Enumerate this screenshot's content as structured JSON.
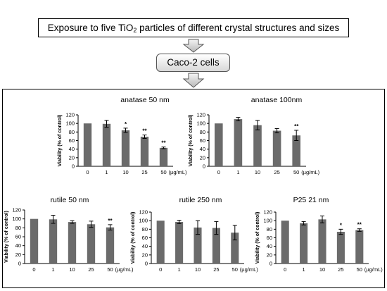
{
  "header": {
    "text_pre": "Exposure to five TiO",
    "subscript": "2",
    "text_post": " particles of different crystal structures and sizes"
  },
  "cell_box": {
    "label": "Caco-2 cells"
  },
  "colors": {
    "bar": "#6b6b6b",
    "axis": "#000000",
    "border": "#000000"
  },
  "chart_data": [
    {
      "type": "bar",
      "title": "anatase 50 nm",
      "ylabel": "Viability (% of control)",
      "categories": [
        "0",
        "1",
        "10",
        "25",
        "50"
      ],
      "unit": "(µg/mL)",
      "values": [
        100,
        99,
        84,
        69,
        43
      ],
      "errors": [
        0,
        8,
        5,
        4,
        2
      ],
      "significance": [
        "",
        "",
        "*",
        "**",
        "**"
      ],
      "yticks": [
        0,
        20,
        40,
        60,
        80,
        100,
        120
      ],
      "ylim": [
        0,
        120
      ]
    },
    {
      "type": "bar",
      "title": "anatase 100nm",
      "ylabel": "Viability (% of control)",
      "categories": [
        "0",
        "1",
        "10",
        "25",
        "50"
      ],
      "unit": "(µg/mL)",
      "values": [
        100,
        110,
        96,
        83,
        72
      ],
      "errors": [
        0,
        4,
        11,
        5,
        12
      ],
      "significance": [
        "",
        "",
        "",
        "",
        "**"
      ],
      "yticks": [
        0,
        20,
        40,
        60,
        80,
        100,
        120
      ],
      "ylim": [
        0,
        120
      ]
    },
    {
      "type": "bar",
      "title": "rutile 50 nm",
      "ylabel": "Viability (% of control)",
      "categories": [
        "0",
        "1",
        "10",
        "25",
        "50"
      ],
      "unit": "(µg/mL)",
      "values": [
        100,
        99,
        93,
        88,
        81
      ],
      "errors": [
        0,
        9,
        3,
        7,
        6
      ],
      "significance": [
        "",
        "",
        "",
        "",
        "**"
      ],
      "yticks": [
        0,
        20,
        40,
        60,
        80,
        100,
        120
      ],
      "ylim": [
        0,
        120
      ]
    },
    {
      "type": "bar",
      "title": "rutile 250 nm",
      "ylabel": "Viability (% of control)",
      "categories": [
        "0",
        "1",
        "10",
        "25",
        "50"
      ],
      "unit": "(µg/mL)",
      "values": [
        100,
        97,
        84,
        83,
        72
      ],
      "errors": [
        0,
        4,
        16,
        15,
        17
      ],
      "significance": [
        "",
        "",
        "",
        "",
        ""
      ],
      "yticks": [
        0,
        20,
        40,
        60,
        80,
        100,
        120
      ],
      "ylim": [
        0,
        120
      ]
    },
    {
      "type": "bar",
      "title": "P25 21 nm",
      "ylabel": "Viability (% of control)",
      "categories": [
        "0",
        "1",
        "10",
        "25",
        "50"
      ],
      "unit": "(µg/mL)",
      "values": [
        100,
        94,
        103,
        74,
        78
      ],
      "errors": [
        0,
        4,
        8,
        6,
        3
      ],
      "significance": [
        "",
        "",
        "",
        "*",
        "**"
      ],
      "yticks": [
        0,
        20,
        40,
        60,
        80,
        100,
        120
      ],
      "ylim": [
        0,
        120
      ]
    }
  ]
}
